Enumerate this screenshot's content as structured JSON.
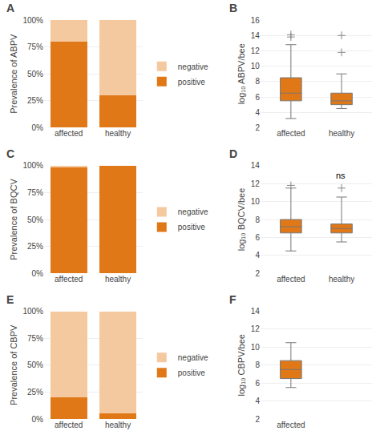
{
  "chart_data": [
    {
      "type": "bar",
      "title": "A",
      "categories": [
        "affected",
        "healthy"
      ],
      "series": [
        {
          "name": "positive",
          "color": "#E07818",
          "values": [
            0.8,
            0.3
          ]
        },
        {
          "name": "negative",
          "color": "#F5C9A0",
          "values": [
            0.2,
            0.7
          ]
        }
      ],
      "stacked": true,
      "ylabel": "Prevalence of ABPV",
      "ylim": [
        0,
        1.0
      ],
      "yticks": [
        {
          "value": 0,
          "label": "0%"
        },
        {
          "value": 0.25,
          "label": "25%"
        },
        {
          "value": 0.5,
          "label": "50%"
        },
        {
          "value": 0.75,
          "label": "75%"
        },
        {
          "value": 1.0,
          "label": "100%"
        }
      ],
      "grid": true,
      "legend": "right"
    },
    {
      "type": "box",
      "title": "B",
      "categories": [
        "affected",
        "healthy"
      ],
      "color": "#E07818",
      "marker": "plus",
      "values": [
        {
          "median": 6.5,
          "q1": 5.5,
          "q3": 8.5,
          "whislo": 3.2,
          "whishi": 12.8,
          "fliers": [
            13.8,
            14.1
          ]
        },
        {
          "median": 5.5,
          "q1": 5.0,
          "q3": 6.5,
          "whislo": 4.5,
          "whishi": 9.0,
          "fliers": [
            11.8,
            14.0
          ]
        }
      ],
      "ylabel": "log₁₀ ABPV/bee",
      "ylim": [
        2,
        16
      ],
      "yticks": [
        2,
        4,
        6,
        8,
        10,
        12,
        14,
        16
      ],
      "grid": true
    },
    {
      "type": "bar",
      "title": "C",
      "categories": [
        "affected",
        "healthy"
      ],
      "series": [
        {
          "name": "positive",
          "color": "#E07818",
          "values": [
            0.98,
            1.0
          ]
        },
        {
          "name": "negative",
          "color": "#F5C9A0",
          "values": [
            0.02,
            0.0
          ]
        }
      ],
      "stacked": true,
      "ylabel": "Prevalence of BQCV",
      "ylim": [
        0,
        1.0
      ],
      "yticks": [
        {
          "value": 0,
          "label": "0%"
        },
        {
          "value": 0.25,
          "label": "25%"
        },
        {
          "value": 0.5,
          "label": "50%"
        },
        {
          "value": 0.75,
          "label": "75%"
        },
        {
          "value": 1.0,
          "label": "100%"
        }
      ],
      "grid": true,
      "legend": "right"
    },
    {
      "type": "box",
      "title": "D",
      "categories": [
        "affected",
        "healthy"
      ],
      "color": "#E07818",
      "marker": "plus",
      "values": [
        {
          "median": 7.2,
          "q1": 6.5,
          "q3": 8.0,
          "whislo": 4.5,
          "whishi": 11.5,
          "fliers": [
            11.8
          ]
        },
        {
          "median": 7.0,
          "q1": 6.5,
          "q3": 7.5,
          "whislo": 5.5,
          "whishi": 10.5,
          "fliers": [
            11.5
          ]
        }
      ],
      "ylabel": "log₁₀ BQCV/bee",
      "ylim": [
        2,
        14
      ],
      "yticks": [
        2,
        4,
        6,
        8,
        10,
        12,
        14
      ],
      "grid": true,
      "annotation": "ns"
    },
    {
      "type": "bar",
      "title": "E",
      "categories": [
        "affected",
        "healthy"
      ],
      "series": [
        {
          "name": "positive",
          "color": "#E07818",
          "values": [
            0.2,
            0.05
          ]
        },
        {
          "name": "negative",
          "color": "#F5C9A0",
          "values": [
            0.8,
            0.95
          ]
        }
      ],
      "stacked": true,
      "ylabel": "Prevalence of CBPV",
      "ylim": [
        0,
        1.0
      ],
      "yticks": [
        {
          "value": 0,
          "label": "0%"
        },
        {
          "value": 0.25,
          "label": "25%"
        },
        {
          "value": 0.5,
          "label": "50%"
        },
        {
          "value": 0.75,
          "label": "75%"
        },
        {
          "value": 1.0,
          "label": "100%"
        }
      ],
      "grid": true,
      "legend": "right"
    },
    {
      "type": "box",
      "title": "F",
      "categories": [
        "affected",
        null
      ],
      "color": "#E07818",
      "marker": "plus",
      "values": [
        {
          "median": 7.5,
          "q1": 6.5,
          "q3": 8.5,
          "whislo": 5.5,
          "whishi": 10.5,
          "fliers": []
        },
        null
      ],
      "ylabel": "log₁₀ CBPV/bee",
      "ylim": [
        2,
        14
      ],
      "yticks": [
        2,
        4,
        6,
        8,
        10,
        12,
        14
      ],
      "grid": true
    }
  ]
}
